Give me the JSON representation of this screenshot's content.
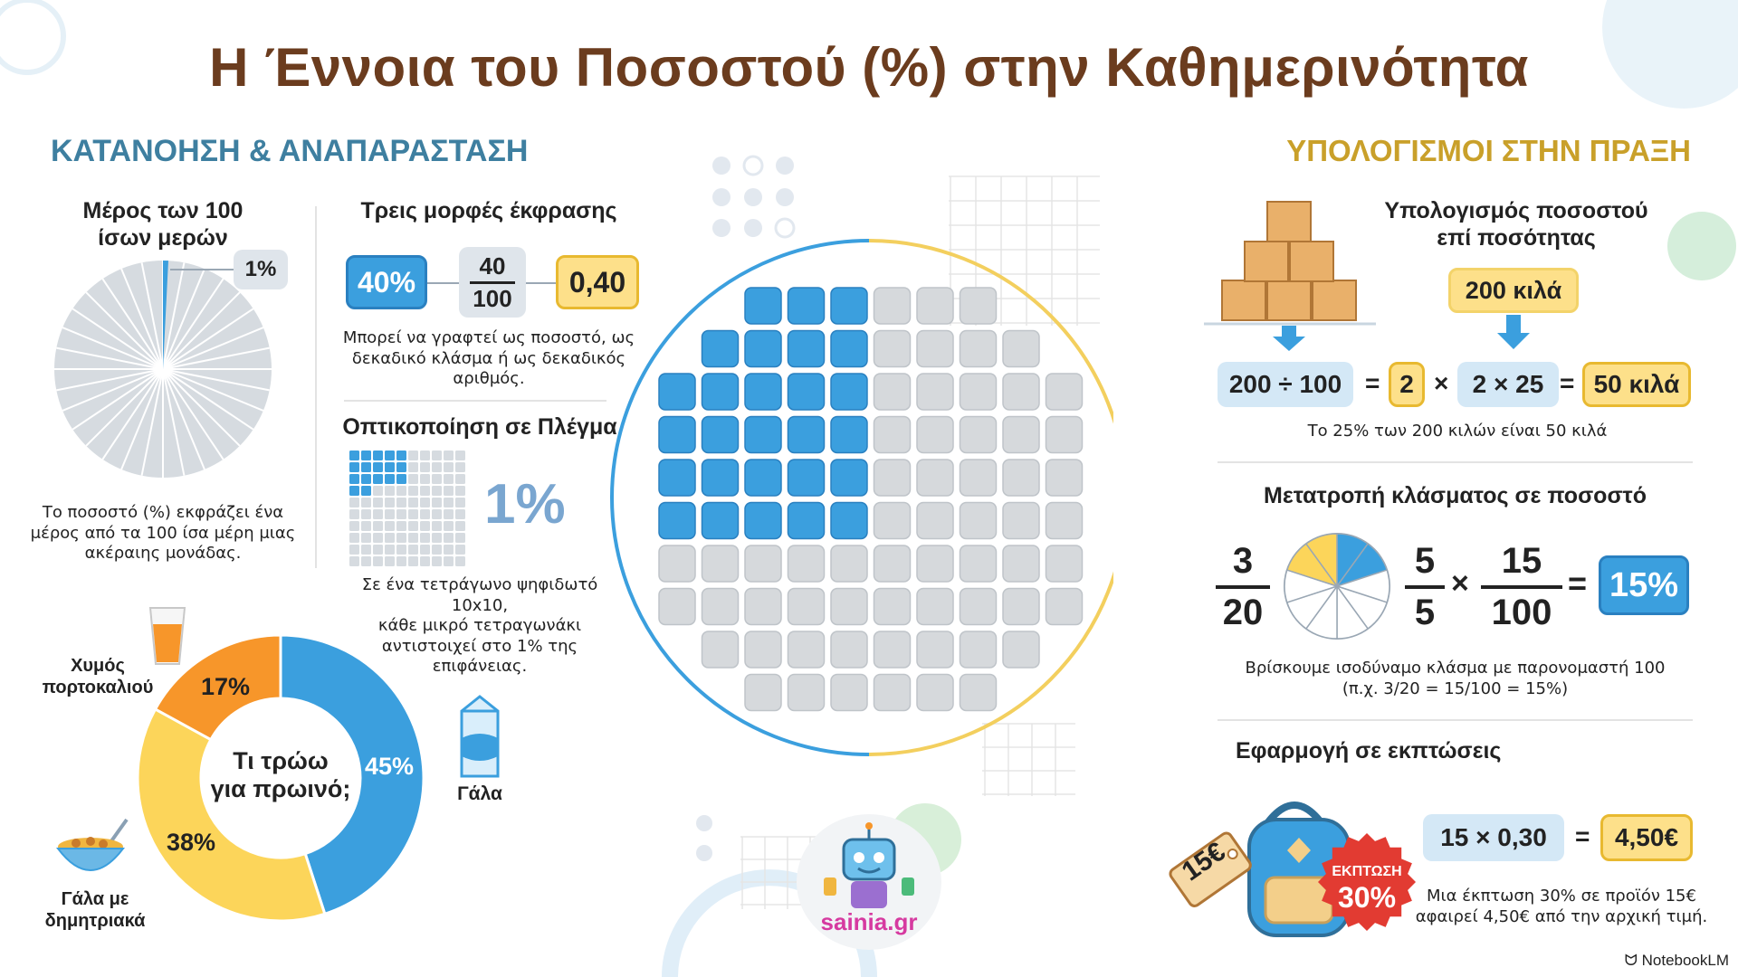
{
  "title": "Η Έννοια του Ποσοστού (%) στην Καθημερινότητα",
  "left_section": {
    "heading": "ΚΑΤΑΝΟΗΣΗ & ΑΝΑΠΑΡΑΣΤΑΣΗ",
    "pie": {
      "title": "Μέρος των 100\nίσων μερών",
      "label": "1%",
      "caption": "Το ποσοστό (%) εκφράζει ένα\nμέρος από τα 100 ίσα μέρη μιας\nακέραιης μονάδας."
    },
    "forms": {
      "title": "Τρεις μορφές έκφρασης",
      "percent": "40%",
      "frac_num": "40",
      "frac_den": "100",
      "decimal": "0,40",
      "caption": "Μπορεί να γραφτεί ως ποσοστό, ως\nδεκαδικό κλάσμα ή ως δεκαδικός\nαριθμός."
    },
    "grid": {
      "title": "Οπτικοποίηση σε Πλέγμα",
      "label": "1%",
      "caption": "Σε ένα τετράγωνο ψηφιδωτό 10x10,\nκάθε μικρό τετραγωνάκι\nαντιστοιχεί στο 1% της επιφάνειας."
    },
    "breakfast": {
      "center": "Τι τρώω\nγια πρωινό;",
      "juice_label": "Χυμός\nπορτοκαλιού",
      "milk_label": "Γάλα",
      "cereal_label": "Γάλα με\nδημητριακά",
      "slices": [
        {
          "label": "45%",
          "value": 45,
          "color": "#3b9fde"
        },
        {
          "label": "38%",
          "value": 38,
          "color": "#fcd55a"
        },
        {
          "label": "17%",
          "value": 17,
          "color": "#f7962a"
        }
      ]
    }
  },
  "right_section": {
    "heading": "ΥΠΟΛΟΓΙΣΜΟΙ ΣΤΗΝ ΠΡΑΞΗ",
    "quantity": {
      "title": "Υπολογισμός ποσοστού\nεπί ποσότητας",
      "tag": "200 κιλά",
      "p1": "200 ÷ 100",
      "eq1": "=",
      "p2": "2",
      "times": "×",
      "p3": "2 × 25",
      "eq2": "=",
      "result": "50 κιλά",
      "caption": "Το 25% των 200 κιλών είναι 50 κιλά"
    },
    "fraction": {
      "title": "Μετατροπή κλάσματος σε ποσοστό",
      "f1_num": "3",
      "f1_den": "20",
      "f2_num": "5",
      "f2_den": "5",
      "times": "×",
      "f3_num": "15",
      "f3_den": "100",
      "eq": "=",
      "result": "15%",
      "caption": "Βρίσκουμε ισοδύναμο κλάσμα με παρονομαστή 100\n(π.χ. 3/20 = 15/100 = 15%)"
    },
    "discount": {
      "title": "Εφαρμογή σε εκπτώσεις",
      "price_tag": "15€",
      "badge_top": "ΕΚΠΤΩΣΗ",
      "badge_val": "30%",
      "calc": "15 × 0,30",
      "eq": "=",
      "result": "4,50€",
      "caption": "Μια έκπτωση 30% σε προϊόν 15€\nαφαιρεί 4,50€ από την αρχική τιμή."
    }
  },
  "center_grid": {
    "filled_count": 29,
    "filled_color": "#3b9fde",
    "empty_color": "#d6d9dc"
  },
  "logo": {
    "text": "sainia.gr"
  },
  "footer": {
    "brand": "NotebookLM"
  }
}
